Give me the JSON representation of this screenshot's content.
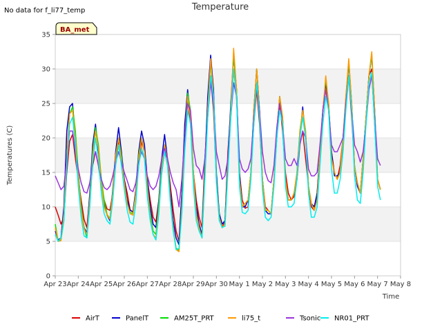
{
  "header": {
    "no_data": "No data for f_li77_temp",
    "badge": "BA_met"
  },
  "chart_data": {
    "type": "line",
    "title": "Temperature",
    "xlabel": "Time",
    "ylabel": "Temperatures (C)",
    "xlim": [
      "2023-04-23",
      "2023-05-08"
    ],
    "ylim": [
      0,
      35
    ],
    "yticks": [
      0,
      5,
      10,
      15,
      20,
      25,
      30,
      35
    ],
    "xtick_labels": [
      "Apr 23",
      "Apr 24",
      "Apr 25",
      "Apr 26",
      "Apr 27",
      "Apr 28",
      "Apr 29",
      "Apr 30",
      "May 1",
      "May 2",
      "May 3",
      "May 4",
      "May 5",
      "May 6",
      "May 7",
      "May 8"
    ],
    "grid": "horizontal bands",
    "legend_position": "bottom",
    "time_resolution": "3-hourly samples from Apr 23 00:00 to May 7 12:00",
    "series": [
      {
        "name": "AirT",
        "color": "#dd0000",
        "values": [
          10,
          8.8,
          7.5,
          8.5,
          15,
          19.5,
          20.5,
          17,
          14,
          11,
          8.2,
          7,
          11.5,
          16,
          18,
          16,
          13,
          11,
          9.7,
          9.5,
          12,
          16.5,
          19.5,
          17,
          14,
          12,
          9.6,
          9.2,
          12,
          16,
          19.5,
          18,
          14,
          11,
          8.5,
          7.8,
          11,
          15,
          18,
          17,
          13,
          9.5,
          6.5,
          5,
          12,
          20,
          26,
          22,
          15,
          11,
          8.5,
          7,
          17,
          24,
          29,
          24,
          14,
          9,
          7,
          8,
          18,
          24,
          30,
          26,
          15,
          11,
          9.8,
          10,
          15,
          22,
          27,
          22,
          14,
          10,
          9.5,
          9,
          14,
          20,
          25,
          21,
          15,
          12,
          11,
          11.5,
          14,
          19,
          21,
          17,
          13,
          10,
          9.5,
          12,
          18,
          24,
          28,
          24,
          18,
          15,
          14,
          16,
          20,
          25,
          29,
          23,
          16,
          13,
          12,
          17,
          23,
          29,
          30,
          22,
          14,
          12.5
        ]
      },
      {
        "name": "PanelT",
        "color": "#0000cc",
        "values": [
          6.5,
          5.2,
          5.5,
          10,
          21,
          24.5,
          25,
          20,
          15,
          10,
          7,
          6.2,
          12,
          19,
          22,
          18,
          14,
          10.5,
          8.8,
          8,
          12.5,
          18,
          21.5,
          18,
          14,
          11,
          9.5,
          9.3,
          12.5,
          18,
          21,
          19,
          14,
          10,
          7.5,
          7,
          11,
          17,
          20.5,
          17,
          12,
          8,
          5.5,
          4.5,
          12,
          22,
          27,
          23,
          15,
          10,
          7.5,
          6,
          16,
          26,
          32,
          27,
          15,
          9,
          7.5,
          8,
          17,
          25,
          32,
          27,
          15,
          10,
          10,
          11,
          15,
          24,
          30,
          24,
          14,
          9.5,
          9,
          9,
          14,
          21,
          26,
          22,
          14,
          11,
          11,
          12,
          14,
          20,
          24.5,
          20,
          13,
          10.5,
          10,
          12,
          18,
          24,
          28,
          25,
          18,
          14.5,
          14.5,
          15,
          19,
          25,
          31,
          25,
          16,
          13,
          12,
          17,
          23,
          29,
          32,
          24,
          14,
          12.5
        ]
      },
      {
        "name": "AM25T_PRT",
        "color": "#00dd00",
        "values": [
          7.5,
          5,
          5.2,
          8,
          17,
          23.5,
          24.5,
          21,
          15,
          10,
          7,
          5.5,
          11,
          18,
          21.5,
          19,
          14,
          11,
          8.9,
          8.3,
          12,
          17.5,
          20,
          17.5,
          13.5,
          10.5,
          9.2,
          9,
          12,
          17.5,
          20,
          18,
          13,
          9,
          6.5,
          6,
          10.5,
          16,
          19,
          17,
          11,
          7,
          4,
          3.7,
          10,
          20,
          26.5,
          24,
          15,
          9,
          7,
          5.5,
          15,
          24,
          31,
          26,
          14,
          8.5,
          7,
          7.5,
          16,
          24,
          32,
          27,
          14,
          10,
          10.5,
          11,
          15,
          24,
          30,
          24,
          14,
          9.5,
          9.5,
          9,
          14,
          21,
          26,
          23,
          14,
          11,
          11,
          12,
          15,
          21,
          24,
          21,
          13,
          10.5,
          9.5,
          11,
          18,
          24,
          28.5,
          25,
          17,
          15,
          14,
          15,
          20,
          26,
          31,
          25,
          16,
          13.5,
          12,
          17,
          23,
          29,
          32,
          24,
          14,
          12.5
        ]
      },
      {
        "name": "li75_t",
        "color": "#ff9900",
        "values": [
          7,
          5,
          5.1,
          9,
          18,
          23.5,
          24,
          20,
          14.5,
          9.5,
          6.8,
          6,
          11,
          17.5,
          21,
          18.5,
          13.5,
          10,
          8.8,
          8.2,
          12,
          17.5,
          20,
          17,
          13.5,
          10.5,
          9,
          8.8,
          12,
          17,
          20,
          18,
          13,
          8.5,
          6,
          5.5,
          10,
          15.5,
          19,
          17,
          11,
          7,
          3.8,
          3.5,
          10,
          20,
          26,
          23,
          15,
          9,
          7,
          5.5,
          15,
          24,
          31.5,
          26,
          14,
          8.5,
          7,
          7.5,
          16,
          24,
          33,
          27,
          14,
          10,
          10.5,
          11,
          15,
          24,
          30,
          24,
          14,
          9.5,
          9.5,
          9,
          14,
          21,
          26,
          23,
          14,
          11,
          11,
          12,
          15,
          21,
          24,
          21,
          13,
          10.5,
          9.5,
          11,
          18,
          24,
          29,
          25,
          17,
          15,
          14,
          15,
          20,
          26,
          31.5,
          25,
          16,
          13.5,
          12,
          17,
          23,
          29,
          32.5,
          24,
          14,
          12.5
        ]
      },
      {
        "name": "Tsonic",
        "color": "#9933dd",
        "values": [
          14.5,
          13.5,
          12.5,
          13,
          17,
          21,
          21,
          18,
          15.5,
          13.5,
          12.2,
          12,
          13.5,
          16.5,
          18,
          16,
          14,
          12.8,
          12.5,
          13,
          14.5,
          16.5,
          18,
          16.5,
          15,
          13.8,
          12.5,
          12.2,
          13.5,
          16.5,
          18,
          17,
          14.5,
          13,
          12.5,
          13,
          14.5,
          17,
          18.5,
          17,
          15,
          13.5,
          12.5,
          10,
          14,
          20,
          25,
          24,
          18.5,
          16,
          15.5,
          14,
          17,
          23,
          28,
          25,
          18,
          16,
          14,
          14.5,
          17,
          23,
          28,
          26,
          17,
          15.5,
          15,
          15.5,
          17,
          23,
          28,
          24,
          18,
          15,
          13.8,
          13.5,
          16,
          21.5,
          25,
          22,
          17,
          16,
          16,
          17,
          16,
          19,
          21,
          20,
          15.5,
          14.5,
          14.5,
          15,
          19,
          24,
          27,
          24,
          19,
          18,
          18,
          19,
          20,
          25,
          29,
          24,
          19,
          18,
          16.5,
          18,
          22,
          27,
          29,
          23,
          17,
          16
        ]
      },
      {
        "name": "NR01_PRT",
        "color": "#00eeee",
        "values": [
          6,
          5,
          5.5,
          8,
          16,
          22,
          23,
          19,
          13,
          8.5,
          5.8,
          5.5,
          10,
          16.5,
          20,
          17,
          12,
          9,
          8,
          7.5,
          11,
          16,
          19,
          16,
          12.5,
          9.5,
          7.8,
          7.5,
          10.5,
          16,
          18.5,
          17,
          11.5,
          8,
          6,
          5.2,
          9,
          15,
          18,
          16,
          10.5,
          6.5,
          3.8,
          4,
          9,
          18,
          24,
          22,
          13,
          8,
          6.5,
          5.5,
          14,
          23,
          29,
          26,
          13.5,
          8,
          7,
          7.2,
          15,
          23,
          30,
          26,
          13,
          9.2,
          9,
          9.5,
          14,
          22,
          28,
          23,
          12.5,
          8.5,
          8,
          8.5,
          13,
          20,
          24,
          22,
          13,
          10,
          10,
          10.5,
          14,
          20,
          23,
          20,
          12,
          8.5,
          8.5,
          10,
          16,
          22,
          26,
          24,
          15.5,
          12,
          12,
          14,
          18,
          24,
          29,
          24,
          14.5,
          11,
          10.5,
          15,
          22,
          28,
          29.5,
          22,
          13,
          11
        ]
      }
    ]
  }
}
